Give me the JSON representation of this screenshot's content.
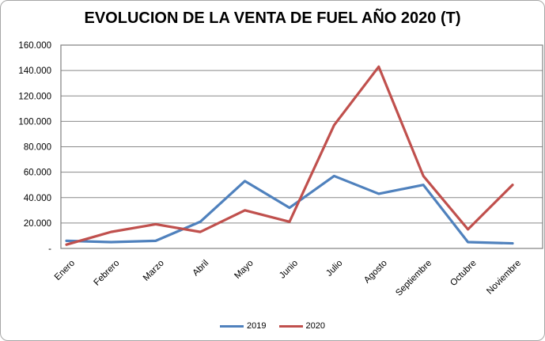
{
  "chart_data": {
    "type": "line",
    "title": "EVOLUCION DE LA VENTA DE FUEL AÑO 2020 (T)",
    "xlabel": "",
    "ylabel": "",
    "categories": [
      "Enero",
      "Febrero",
      "Marzo",
      "Abril",
      "Mayo",
      "Junio",
      "Julio",
      "Agosto",
      "Septiembre",
      "Octubre",
      "Noviembre"
    ],
    "series": [
      {
        "name": "2019",
        "color": "#4F81BD",
        "values": [
          6000,
          5000,
          6000,
          21000,
          53000,
          32000,
          57000,
          43000,
          50000,
          5000,
          4000
        ]
      },
      {
        "name": "2020",
        "color": "#C0504D",
        "values": [
          3000,
          13000,
          19000,
          13000,
          30000,
          21000,
          97000,
          143000,
          57000,
          15000,
          50000
        ]
      }
    ],
    "ylim": [
      0,
      160000
    ],
    "ytick_step": 20000,
    "ytick_labels": [
      "-",
      "20.000",
      "40.000",
      "60.000",
      "80.000",
      "100.000",
      "120.000",
      "140.000",
      "160.000"
    ],
    "grid": true,
    "legend_position": "bottom",
    "colors": {
      "gridline": "#898989",
      "plot_border": "#808080",
      "axis_text": "#000000"
    }
  }
}
